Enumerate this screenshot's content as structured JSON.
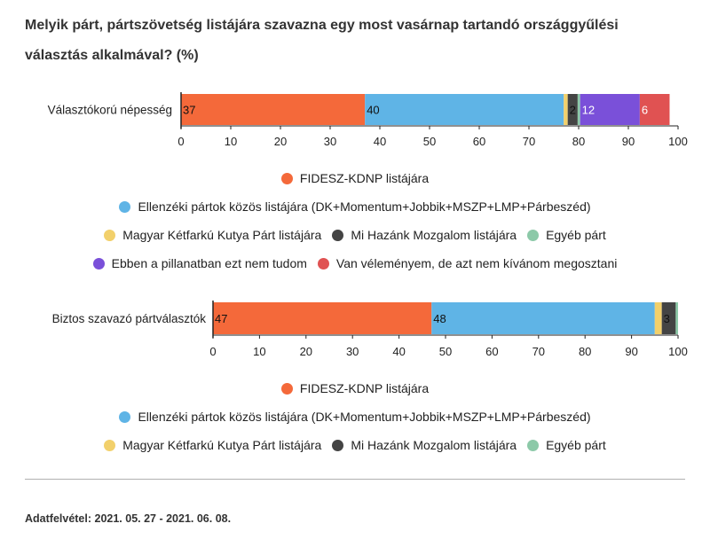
{
  "title": "Melyik párt, pártszövetség listájára szavazna egy most vasárnap tartandó országgyűlési választás alkalmával? (%)",
  "footer": "Adatfelvétel:  2021. 05. 27 - 2021. 06. 08.",
  "colors": {
    "fidesz": "#f4693a",
    "ellenzek": "#5fb4e6",
    "mkkp": "#f2d06b",
    "mihazank": "#444444",
    "egyeb": "#8cc9a8",
    "nemtudom": "#7a50d9",
    "nemmondja": "#e05252"
  },
  "chart_data": [
    {
      "type": "bar",
      "orientation": "horizontal",
      "stacked": true,
      "category": "Választókorú népesség",
      "xlim": [
        0,
        100
      ],
      "ticks": [
        0,
        10,
        20,
        30,
        40,
        50,
        60,
        70,
        80,
        90,
        100
      ],
      "series": [
        {
          "name": "FIDESZ-KDNP listájára",
          "value": 37,
          "label": "37",
          "color_key": "fidesz"
        },
        {
          "name": "Ellenzéki pártok közös  listájára (DK+Momentum+Jobbik+MSZP+LMP+Párbeszéd)",
          "value": 40,
          "label": "40",
          "color_key": "ellenzek"
        },
        {
          "name": "Magyar Kétfarkú Kutya Párt listájára",
          "value": 0.8,
          "label": "",
          "color_key": "mkkp"
        },
        {
          "name": "Mi Hazánk Mozgalom listájára",
          "value": 2,
          "label": "2",
          "color_key": "mihazank"
        },
        {
          "name": "Egyéb párt",
          "value": 0.5,
          "label": "",
          "color_key": "egyeb"
        },
        {
          "name": "Ebben a pillanatban ezt nem tudom",
          "value": 12,
          "label": "12",
          "color_key": "nemtudom"
        },
        {
          "name": "Van véleményem, de azt nem kívánom megosztani",
          "value": 6,
          "label": "6",
          "color_key": "nemmondja"
        }
      ],
      "legend_rows": [
        [
          0
        ],
        [
          1
        ],
        [
          2,
          3,
          4
        ],
        [
          5,
          6
        ]
      ]
    },
    {
      "type": "bar",
      "orientation": "horizontal",
      "stacked": true,
      "category": "Biztos szavazó pártválasztók",
      "xlim": [
        0,
        100
      ],
      "ticks": [
        0,
        10,
        20,
        30,
        40,
        50,
        60,
        70,
        80,
        90,
        100
      ],
      "series": [
        {
          "name": "FIDESZ-KDNP listájára",
          "value": 47,
          "label": "47",
          "color_key": "fidesz"
        },
        {
          "name": "Ellenzéki pártok közös  listájára (DK+Momentum+Jobbik+MSZP+LMP+Párbeszéd)",
          "value": 48,
          "label": "48",
          "color_key": "ellenzek"
        },
        {
          "name": "Magyar Kétfarkú Kutya Párt listájára",
          "value": 1.5,
          "label": "",
          "color_key": "mkkp"
        },
        {
          "name": "Mi Hazánk Mozgalom listájára",
          "value": 3,
          "label": "3",
          "color_key": "mihazank"
        },
        {
          "name": "Egyéb párt",
          "value": 0.5,
          "label": "",
          "color_key": "egyeb"
        }
      ],
      "legend_rows": [
        [
          0
        ],
        [
          1
        ],
        [
          2,
          3,
          4
        ]
      ]
    }
  ]
}
